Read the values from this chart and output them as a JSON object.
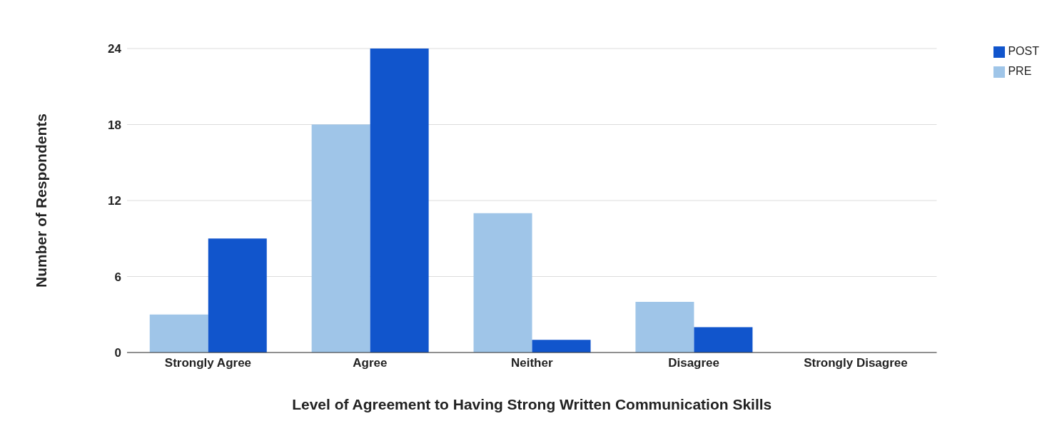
{
  "chart_data": {
    "type": "bar",
    "xlabel": "Level of Agreement to Having Strong Written Communication Skills",
    "ylabel": "Number of Respondents",
    "categories": [
      "Strongly Agree",
      "Agree",
      "Neither",
      "Disagree",
      "Strongly Disagree"
    ],
    "series": [
      {
        "name": "PRE",
        "color": "#9fc5e8",
        "values": [
          3,
          18,
          11,
          4,
          0
        ]
      },
      {
        "name": "POST",
        "color": "#1155cc",
        "values": [
          9,
          24,
          1,
          2,
          0
        ]
      }
    ],
    "ylim": [
      0,
      24
    ],
    "yticks": [
      0,
      6,
      12,
      18,
      24
    ],
    "grid": "y",
    "legend": "top right"
  }
}
